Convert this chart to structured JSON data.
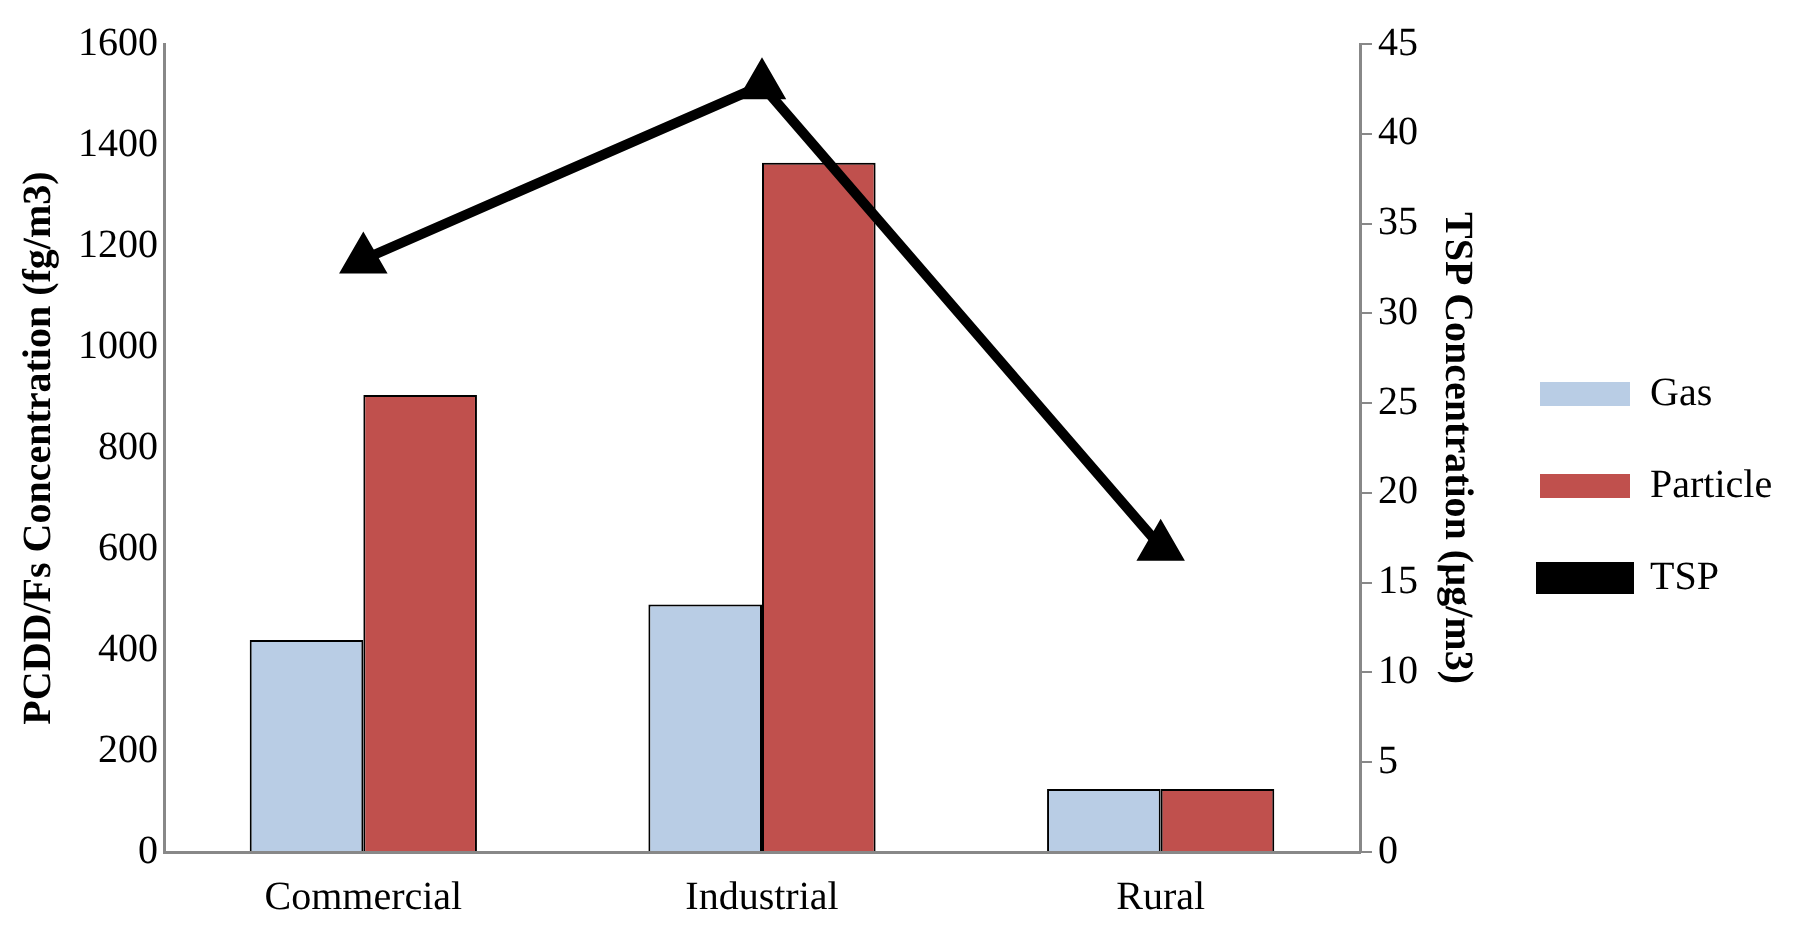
{
  "chart_data": {
    "type": "bar",
    "categories": [
      "Commercial",
      "Industrial",
      "Rural"
    ],
    "ylabel": "PCDD/Fs Concentration (fg/m3)",
    "y2label": "TSP Concentration (µg/m3)",
    "ylim": [
      0,
      1600
    ],
    "yticks": [
      0,
      200,
      400,
      600,
      800,
      1000,
      1200,
      1400,
      1600
    ],
    "y2lim": [
      0,
      45
    ],
    "y2ticks": [
      0,
      5,
      10,
      15,
      20,
      25,
      30,
      35,
      40,
      45
    ],
    "series": [
      {
        "name": "Gas",
        "color": "#b9cde5",
        "values": [
          420,
          490,
          125
        ]
      },
      {
        "name": "Particle",
        "color": "#c0504d",
        "values": [
          905,
          1365,
          125
        ]
      },
      {
        "name": "TSP",
        "type": "line",
        "axis": "y2",
        "color": "#000000",
        "marker": "triangle",
        "values": [
          33,
          42.7,
          17
        ]
      }
    ],
    "grid": false,
    "legend": "right"
  }
}
